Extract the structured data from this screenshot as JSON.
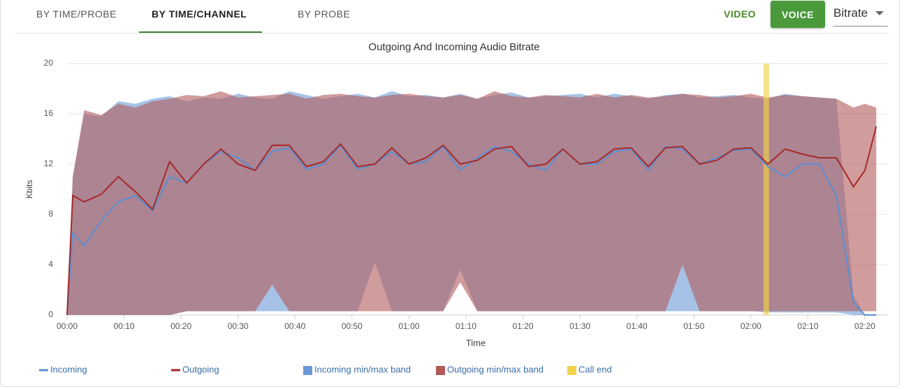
{
  "tabs": [
    "BY TIME/PROBE",
    "BY TIME/CHANNEL",
    "BY PROBE"
  ],
  "media_buttons": [
    "VIDEO",
    "VOICE"
  ],
  "metric_select": "Bitrate",
  "chart_data": {
    "type": "line",
    "title": "Outgoing And Incoming Audio Bitrate",
    "x_label": "Time",
    "y_label": "Kbits",
    "x": [
      0,
      1,
      3,
      6,
      9,
      12,
      15,
      18,
      21,
      24,
      27,
      30,
      33,
      36,
      39,
      42,
      45,
      48,
      51,
      54,
      57,
      60,
      63,
      66,
      69,
      72,
      75,
      78,
      81,
      84,
      87,
      90,
      93,
      96,
      99,
      102,
      105,
      108,
      111,
      114,
      117,
      120,
      123,
      126,
      129,
      132,
      135,
      138,
      140,
      142
    ],
    "xlim": [
      0,
      144
    ],
    "xticks": [
      {
        "value": 0,
        "label": "00:00"
      },
      {
        "value": 10,
        "label": "00:10"
      },
      {
        "value": 20,
        "label": "00:20"
      },
      {
        "value": 30,
        "label": "00:30"
      },
      {
        "value": 40,
        "label": "00:40"
      },
      {
        "value": 50,
        "label": "00:50"
      },
      {
        "value": 60,
        "label": "01:00"
      },
      {
        "value": 70,
        "label": "01:10"
      },
      {
        "value": 80,
        "label": "01:20"
      },
      {
        "value": 90,
        "label": "01:30"
      },
      {
        "value": 100,
        "label": "01:40"
      },
      {
        "value": 110,
        "label": "01:50"
      },
      {
        "value": 120,
        "label": "02:00"
      },
      {
        "value": 130,
        "label": "02:10"
      },
      {
        "value": 140,
        "label": "02:20"
      }
    ],
    "ylim": [
      0,
      20
    ],
    "yticks": [
      0,
      4,
      8,
      12,
      16,
      20
    ],
    "grid": true,
    "series": [
      {
        "name": "Incoming",
        "type": "line",
        "color": "#5b8fd0",
        "values": [
          0,
          6.5,
          5.5,
          7.5,
          9,
          9.5,
          8.3,
          11,
          10.5,
          12,
          13,
          12.5,
          11.5,
          13,
          13.3,
          11.6,
          12,
          13.5,
          11.6,
          12,
          13,
          12,
          12.2,
          13.4,
          11.5,
          12.5,
          13.4,
          13,
          12,
          11.5,
          13.2,
          12,
          12,
          13,
          13.2,
          11.5,
          13.4,
          13.2,
          12,
          12.5,
          13.1,
          13.2,
          11.8,
          11,
          12,
          12,
          9.5,
          1,
          0,
          0
        ]
      },
      {
        "name": "Outgoing",
        "type": "line",
        "color": "#a52a2a",
        "values": [
          0,
          9.5,
          9,
          9.6,
          11,
          9.8,
          8.4,
          12.2,
          10.5,
          12,
          13.2,
          12,
          11.5,
          13.5,
          13.5,
          11.8,
          12.2,
          13.6,
          11.8,
          12,
          13.3,
          12,
          12.5,
          13.5,
          12,
          12.3,
          13.2,
          13.4,
          11.8,
          12,
          13.2,
          12,
          12.2,
          13.2,
          13.3,
          11.8,
          13.3,
          13.4,
          12,
          12.3,
          13.2,
          13.3,
          12,
          13.2,
          12.8,
          12.5,
          12.5,
          10.2,
          11.5,
          15
        ]
      },
      {
        "name": "Incoming min/max band",
        "type": "band",
        "color": "#6a9ad6",
        "min": [
          0,
          0,
          0,
          0,
          0,
          0,
          0,
          0,
          0.3,
          0.3,
          0.3,
          0.3,
          0.3,
          0.3,
          0.3,
          0.3,
          0.3,
          0.3,
          0.3,
          4.2,
          0.3,
          0.3,
          0.3,
          0.3,
          3.6,
          0.3,
          0.3,
          0.3,
          0.3,
          0.3,
          0.3,
          0.3,
          0.3,
          0.3,
          0.3,
          0.3,
          0.3,
          0.3,
          0.3,
          0.3,
          0.3,
          0.3,
          0.2,
          0.2,
          0.2,
          0.2,
          0.2,
          0,
          0,
          0
        ],
        "max": [
          0,
          11,
          16,
          15.8,
          17,
          16.8,
          17.2,
          17.4,
          17,
          17.3,
          17.2,
          17.6,
          17.3,
          17.2,
          17.8,
          17.5,
          17.2,
          17.4,
          17.6,
          17.3,
          17.8,
          17.4,
          17.5,
          17.3,
          17.6,
          17.2,
          17.5,
          17.7,
          17.3,
          17.4,
          17.5,
          17.6,
          17.3,
          17.6,
          17.4,
          17.2,
          17.5,
          17.6,
          17.3,
          17.4,
          17.5,
          17.3,
          17.2,
          17.6,
          17.4,
          17.3,
          17.2,
          1.5,
          0,
          0
        ]
      },
      {
        "name": "Outgoing min/max band",
        "type": "band",
        "color": "#b35a5a",
        "min": [
          0,
          0,
          0,
          0,
          0,
          0,
          0,
          0,
          0.3,
          0.3,
          0.3,
          0.3,
          0.3,
          2.4,
          0.3,
          0.3,
          0.3,
          0.3,
          0.3,
          0.3,
          0.3,
          0.3,
          0.3,
          0.3,
          2.6,
          0.3,
          0.3,
          0.3,
          0.3,
          0.3,
          0.3,
          0.3,
          0.3,
          0.3,
          0.3,
          0.3,
          0.3,
          4,
          0.3,
          0.3,
          0.3,
          0.3,
          0.3,
          0.3,
          0.3,
          0.3,
          0.3,
          0.3,
          0.3,
          0.3
        ],
        "max": [
          0,
          11,
          16.3,
          15.9,
          16.8,
          16.5,
          17,
          17.2,
          17.5,
          17.4,
          17.8,
          17.3,
          17.4,
          17.5,
          17.6,
          17.2,
          17.5,
          17.6,
          17.4,
          17.3,
          17.5,
          17.6,
          17.4,
          17.3,
          17.5,
          17.2,
          17.8,
          17.4,
          17.3,
          17.5,
          17.4,
          17.3,
          17.6,
          17.3,
          17.5,
          17.3,
          17.4,
          17.6,
          17.5,
          17.3,
          17.4,
          17.6,
          17.3,
          17.5,
          17.4,
          17.3,
          17.2,
          16.5,
          16.8,
          16.5
        ]
      },
      {
        "name": "Call end",
        "type": "marker",
        "color": "#f2d24a",
        "x": 122.7
      }
    ]
  }
}
